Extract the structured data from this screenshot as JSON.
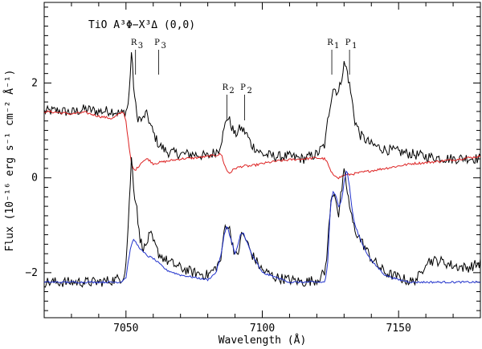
{
  "chart_data": {
    "type": "line",
    "title": "TiO   A³Φ−X³Δ (0,0)",
    "xlabel": "Wavelength (Å)",
    "ylabel": "Flux (10⁻¹⁶ erg s⁻¹ cm⁻² Å⁻¹)",
    "xlim": [
      7020,
      7180
    ],
    "ylim": [
      -2.95,
      3.7
    ],
    "xticks": [
      7050,
      7100,
      7150
    ],
    "xtick_labels": [
      "7050",
      "7100",
      "7150"
    ],
    "yticks": [
      -2,
      0,
      2
    ],
    "ytick_labels": [
      "−2",
      "0",
      "2"
    ],
    "band_labels": [
      {
        "main": "R",
        "sub": "3",
        "x": 7053.5
      },
      {
        "main": "P",
        "sub": "3",
        "x": 7062
      },
      {
        "main": "R",
        "sub": "2",
        "x": 7087
      },
      {
        "main": "P",
        "sub": "2",
        "x": 7093.5
      },
      {
        "main": "R",
        "sub": "1",
        "x": 7125.5
      },
      {
        "main": "P",
        "sub": "1",
        "x": 7132
      }
    ],
    "series": [
      {
        "color": "#000000",
        "x": [
          7020,
          7025,
          7030,
          7035,
          7040,
          7045,
          7048,
          7050,
          7051,
          7052,
          7053,
          7054,
          7055,
          7056,
          7057,
          7058,
          7059,
          7060,
          7062,
          7065,
          7070,
          7075,
          7080,
          7084,
          7086,
          7087,
          7088,
          7090,
          7092,
          7094,
          7096,
          7100,
          7105,
          7110,
          7115,
          7120,
          7123,
          7124,
          7125,
          7126,
          7127,
          7128,
          7129,
          7130,
          7131,
          7132,
          7133,
          7134,
          7136,
          7138,
          7140,
          7145,
          7150,
          7155,
          7160,
          7165,
          7170,
          7175,
          7180
        ],
        "y": [
          1.4,
          1.42,
          1.38,
          1.45,
          1.4,
          1.42,
          1.35,
          1.4,
          1.6,
          2.65,
          1.8,
          1.3,
          1.25,
          1.2,
          1.35,
          1.3,
          1.1,
          0.95,
          0.7,
          0.55,
          0.5,
          0.5,
          0.45,
          0.6,
          1.0,
          1.3,
          1.2,
          0.9,
          1.05,
          0.95,
          0.7,
          0.5,
          0.45,
          0.45,
          0.4,
          0.5,
          0.7,
          1.2,
          1.6,
          1.9,
          1.85,
          1.8,
          2.1,
          2.4,
          2.3,
          1.95,
          1.6,
          1.2,
          0.9,
          0.8,
          0.7,
          0.6,
          0.55,
          0.5,
          0.45,
          0.42,
          0.4,
          0.42,
          0.4
        ]
      },
      {
        "color": "#dd2222",
        "x": [
          7020,
          7025,
          7030,
          7035,
          7040,
          7045,
          7049,
          7050,
          7051,
          7052,
          7053,
          7054,
          7056,
          7058,
          7060,
          7065,
          7070,
          7075,
          7080,
          7083,
          7085,
          7086,
          7087,
          7088,
          7090,
          7093,
          7096,
          7100,
          7105,
          7110,
          7115,
          7120,
          7123,
          7124,
          7125,
          7126,
          7127,
          7128,
          7130,
          7135,
          7140,
          7145,
          7150,
          7155,
          7160,
          7165,
          7170,
          7175,
          7180
        ],
        "y": [
          1.4,
          1.38,
          1.35,
          1.38,
          1.3,
          1.25,
          1.4,
          1.2,
          0.7,
          0.3,
          0.15,
          0.2,
          0.35,
          0.4,
          0.3,
          0.35,
          0.4,
          0.42,
          0.45,
          0.48,
          0.5,
          0.3,
          0.15,
          0.1,
          0.2,
          0.25,
          0.25,
          0.3,
          0.35,
          0.38,
          0.4,
          0.42,
          0.4,
          0.3,
          0.15,
          0.05,
          0.05,
          0.0,
          0.05,
          0.1,
          0.15,
          0.2,
          0.25,
          0.3,
          0.32,
          0.35,
          0.38,
          0.42,
          0.45
        ]
      },
      {
        "color": "#000000",
        "x": [
          7020,
          7030,
          7040,
          7046,
          7049,
          7050,
          7051,
          7052,
          7053,
          7054,
          7055,
          7056,
          7057,
          7058,
          7059,
          7060,
          7062,
          7065,
          7070,
          7075,
          7080,
          7083,
          7085,
          7086,
          7087,
          7088,
          7090,
          7091,
          7092,
          7093,
          7094,
          7096,
          7100,
          7105,
          7110,
          7115,
          7120,
          7123,
          7124,
          7125,
          7126,
          7127,
          7128,
          7129,
          7130,
          7131,
          7132,
          7133,
          7134,
          7136,
          7138,
          7140,
          7145,
          7150,
          7155,
          7158,
          7160,
          7165,
          7170,
          7175,
          7180
        ],
        "y": [
          -2.2,
          -2.2,
          -2.2,
          -2.15,
          -2.1,
          -1.8,
          -0.8,
          0.4,
          -0.3,
          -0.6,
          -1.3,
          -1.4,
          -1.5,
          -1.3,
          -1.2,
          -1.35,
          -1.6,
          -1.75,
          -1.9,
          -2.0,
          -2.05,
          -1.9,
          -1.7,
          -1.1,
          -0.95,
          -1.1,
          -1.6,
          -1.7,
          -1.25,
          -1.2,
          -1.3,
          -1.6,
          -1.95,
          -2.1,
          -2.15,
          -2.2,
          -2.15,
          -2.0,
          -1.4,
          -0.6,
          -0.3,
          -0.4,
          -0.8,
          -0.3,
          0.1,
          -0.2,
          -0.6,
          -0.9,
          -1.1,
          -1.3,
          -1.5,
          -1.7,
          -2.0,
          -2.1,
          -2.2,
          -2.05,
          -1.75,
          -1.75,
          -1.85,
          -1.9,
          -1.8
        ]
      },
      {
        "color": "#2233cc",
        "x": [
          7020,
          7030,
          7040,
          7048,
          7050,
          7051,
          7052,
          7053,
          7054,
          7056,
          7058,
          7060,
          7062,
          7065,
          7070,
          7075,
          7080,
          7083,
          7085,
          7086,
          7087,
          7088,
          7090,
          7091,
          7092,
          7093,
          7094,
          7096,
          7100,
          7105,
          7110,
          7115,
          7120,
          7123,
          7124,
          7125,
          7126,
          7127,
          7128,
          7129,
          7130,
          7131,
          7132,
          7133,
          7134,
          7136,
          7138,
          7140,
          7145,
          7150,
          7155,
          7160,
          7165,
          7170,
          7175,
          7180
        ],
        "y": [
          -2.2,
          -2.2,
          -2.2,
          -2.2,
          -2.1,
          -1.7,
          -1.4,
          -1.3,
          -1.4,
          -1.55,
          -1.65,
          -1.7,
          -1.8,
          -1.95,
          -2.05,
          -2.1,
          -2.15,
          -2.0,
          -1.6,
          -1.2,
          -1.0,
          -1.2,
          -1.6,
          -1.45,
          -1.2,
          -1.15,
          -1.3,
          -1.6,
          -2.0,
          -2.1,
          -2.2,
          -2.2,
          -2.2,
          -2.2,
          -1.8,
          -0.6,
          -0.3,
          -0.35,
          -0.6,
          -0.5,
          -0.1,
          0.2,
          -0.2,
          -0.7,
          -1.0,
          -1.3,
          -1.55,
          -1.75,
          -2.05,
          -2.15,
          -2.2,
          -2.2,
          -2.2,
          -2.2,
          -2.2,
          -2.2
        ]
      }
    ]
  }
}
